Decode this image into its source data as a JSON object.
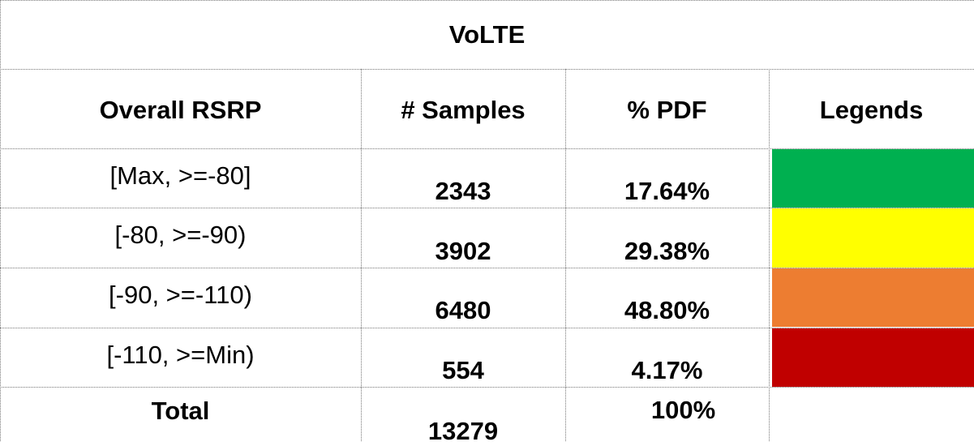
{
  "table": {
    "title": "VoLTE",
    "header": [
      "Overall RSRP",
      "# Samples",
      "% PDF",
      "Legends"
    ],
    "rows": [
      {
        "range": "[Max, >=-80]",
        "samples": "2343",
        "pdf": "17.64%",
        "color": "#00b050"
      },
      {
        "range": "[-80, >=-90)",
        "samples": "3902",
        "pdf": "29.38%",
        "color": "#ffff00"
      },
      {
        "range": "[-90, >=-110)",
        "samples": "6480",
        "pdf": "48.80%",
        "color": "#ed7d31"
      },
      {
        "range": "[-110, >=Min)",
        "samples": "554",
        "pdf": "4.17%",
        "color": "#c00000"
      }
    ],
    "total": {
      "label": "Total",
      "samples": "13279",
      "pdf": "100%"
    }
  }
}
